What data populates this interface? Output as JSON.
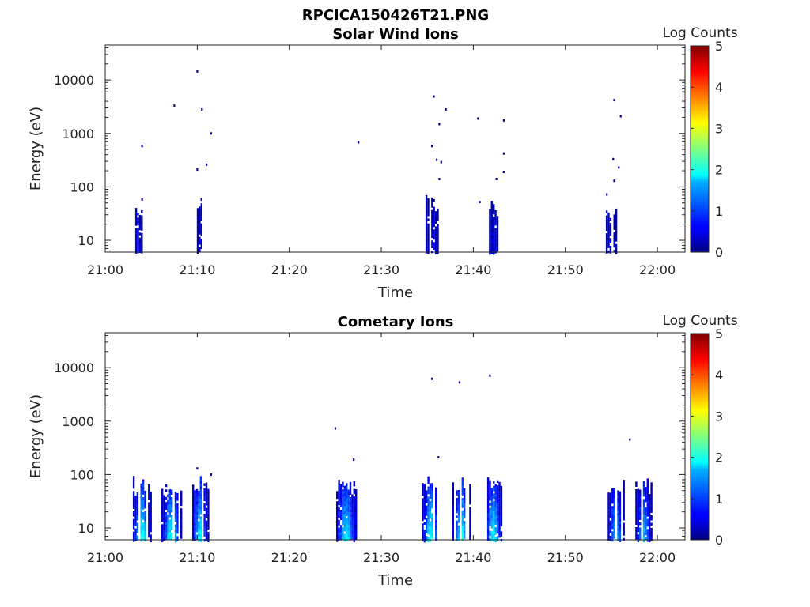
{
  "figure_title": "RPCICA150426T21.PNG",
  "chart_data": [
    {
      "type": "heatmap",
      "title": "Solar Wind Ions",
      "xlabel": "Time",
      "ylabel": "Energy (eV)",
      "yscale": "log",
      "ylim": [
        6,
        45000
      ],
      "xlim": [
        "21:00",
        "22:03"
      ],
      "xticks": [
        "21:00",
        "21:10",
        "21:20",
        "21:30",
        "21:40",
        "21:50",
        "22:00"
      ],
      "yticks": [
        "10",
        "100",
        "1000",
        "10000"
      ],
      "colorbar": {
        "label": "Log Counts",
        "range": [
          0,
          5
        ],
        "ticks": [
          "0",
          "1",
          "2",
          "3",
          "4",
          "5"
        ],
        "colormap": "jet"
      },
      "bursts": [
        {
          "time": "21:03.5",
          "width_min": 0.9,
          "emin": 6,
          "emax": 50,
          "peak": 0.45
        },
        {
          "time": "21:10.2",
          "width_min": 0.5,
          "emin": 6,
          "emax": 65,
          "peak": 0.25
        },
        {
          "time": "21:35.5",
          "width_min": 1.4,
          "emin": 6,
          "emax": 75,
          "peak": 0.5
        },
        {
          "time": "21:42.2",
          "width_min": 1.0,
          "emin": 6,
          "emax": 60,
          "peak": 0.4
        },
        {
          "time": "21:55.0",
          "width_min": 1.2,
          "emin": 6,
          "emax": 50,
          "peak": 0.4
        }
      ],
      "points": [
        {
          "time": "21:04.0",
          "energy": 580
        },
        {
          "time": "21:04.0",
          "energy": 58
        },
        {
          "time": "21:07.5",
          "energy": 3300
        },
        {
          "time": "21:10.0",
          "energy": 14500
        },
        {
          "time": "21:10.5",
          "energy": 2800
        },
        {
          "time": "21:11.5",
          "energy": 1000
        },
        {
          "time": "21:10.0",
          "energy": 210
        },
        {
          "time": "21:11.0",
          "energy": 260
        },
        {
          "time": "21:27.5",
          "energy": 680
        },
        {
          "time": "21:35.7",
          "energy": 4900
        },
        {
          "time": "21:36.3",
          "energy": 1500
        },
        {
          "time": "21:37.0",
          "energy": 2800
        },
        {
          "time": "21:35.5",
          "energy": 580
        },
        {
          "time": "21:36.0",
          "energy": 320
        },
        {
          "time": "21:36.5",
          "energy": 290
        },
        {
          "time": "21:36.3",
          "energy": 140
        },
        {
          "time": "21:40.5",
          "energy": 1900
        },
        {
          "time": "21:40.7",
          "energy": 52
        },
        {
          "time": "21:42.5",
          "energy": 140
        },
        {
          "time": "21:43.3",
          "energy": 1750
        },
        {
          "time": "21:43.3",
          "energy": 420
        },
        {
          "time": "21:43.3",
          "energy": 190
        },
        {
          "time": "21:55.3",
          "energy": 4200
        },
        {
          "time": "21:56.0",
          "energy": 2100
        },
        {
          "time": "21:55.2",
          "energy": 330
        },
        {
          "time": "21:55.8",
          "energy": 230
        },
        {
          "time": "21:55.3",
          "energy": 130
        },
        {
          "time": "21:54.5",
          "energy": 72
        }
      ]
    },
    {
      "type": "heatmap",
      "title": "Cometary Ions",
      "xlabel": "Time",
      "ylabel": "Energy (eV)",
      "yscale": "log",
      "ylim": [
        6,
        45000
      ],
      "xlim": [
        "21:00",
        "22:03"
      ],
      "xticks": [
        "21:00",
        "21:10",
        "21:20",
        "21:30",
        "21:40",
        "21:50",
        "22:00"
      ],
      "yticks": [
        "10",
        "100",
        "1000",
        "10000"
      ],
      "colorbar": {
        "label": "Log Counts",
        "range": [
          0,
          5
        ],
        "ticks": [
          "0",
          "1",
          "2",
          "3",
          "4",
          "5"
        ],
        "colormap": "jet"
      },
      "bursts": [
        {
          "time": "21:04.0",
          "width_min": 2.0,
          "emin": 6,
          "emax": 95,
          "peak": 1.9
        },
        {
          "time": "21:07.2",
          "width_min": 2.2,
          "emin": 6,
          "emax": 85,
          "peak": 1.9
        },
        {
          "time": "21:10.3",
          "width_min": 1.7,
          "emin": 6,
          "emax": 95,
          "peak": 1.8
        },
        {
          "time": "21:26.2",
          "width_min": 2.2,
          "emin": 6,
          "emax": 85,
          "peak": 1.8
        },
        {
          "time": "21:35.4",
          "width_min": 2.0,
          "emin": 6,
          "emax": 95,
          "peak": 1.9
        },
        {
          "time": "21:38.7",
          "width_min": 2.0,
          "emin": 6,
          "emax": 90,
          "peak": 1.9
        },
        {
          "time": "21:42.2",
          "width_min": 1.8,
          "emin": 6,
          "emax": 90,
          "peak": 1.9
        },
        {
          "time": "21:55.5",
          "width_min": 1.8,
          "emin": 6,
          "emax": 90,
          "peak": 1.5
        },
        {
          "time": "21:58.5",
          "width_min": 1.8,
          "emin": 6,
          "emax": 85,
          "peak": 1.5
        }
      ],
      "points": [
        {
          "time": "21:25.0",
          "energy": 730
        },
        {
          "time": "21:35.5",
          "energy": 6200
        },
        {
          "time": "21:38.5",
          "energy": 5300
        },
        {
          "time": "21:41.8",
          "energy": 7100
        },
        {
          "time": "21:36.2",
          "energy": 210
        },
        {
          "time": "21:27.0",
          "energy": 190
        },
        {
          "time": "21:57.0",
          "energy": 450
        },
        {
          "time": "21:11.5",
          "energy": 100
        },
        {
          "time": "21:10.0",
          "energy": 130
        }
      ]
    }
  ]
}
